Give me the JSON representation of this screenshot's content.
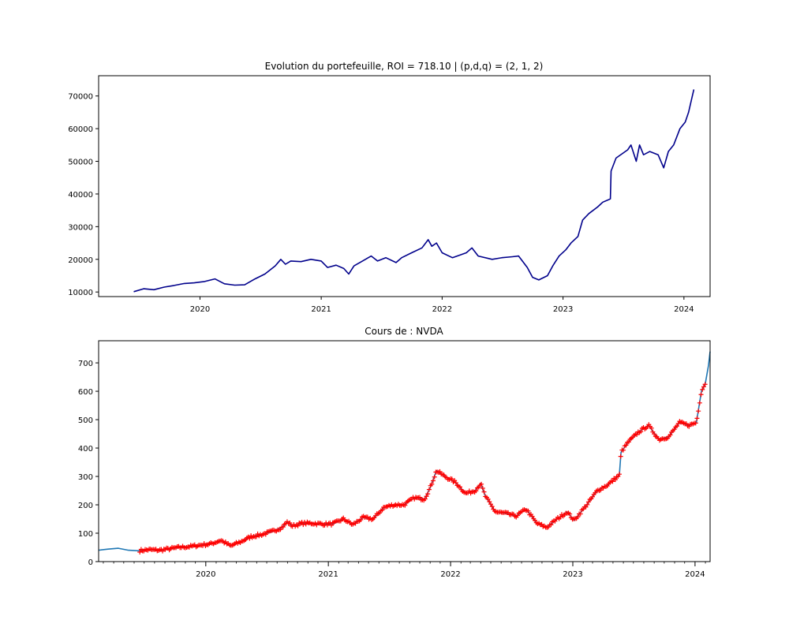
{
  "chart_data": [
    {
      "type": "line",
      "title": "Evolution du portefeuille, ROI = 718.10  |  (p,d,q) = (2, 1, 2)",
      "xlabel": "",
      "ylabel": "",
      "xlim": [
        "2019-03-01",
        "2024-03-20"
      ],
      "ylim": [
        8600,
        76200
      ],
      "x_ticks": [
        "2020",
        "2021",
        "2022",
        "2023",
        "2024"
      ],
      "y_ticks": [
        10000,
        20000,
        30000,
        40000,
        50000,
        60000,
        70000
      ],
      "grid": false,
      "series": [
        {
          "color": "#00008b",
          "points": [
            [
              "2019-06-15",
              10100
            ],
            [
              "2019-07-15",
              11000
            ],
            [
              "2019-08-15",
              10700
            ],
            [
              "2019-09-15",
              11500
            ],
            [
              "2019-10-15",
              12000
            ],
            [
              "2019-11-15",
              12600
            ],
            [
              "2019-12-15",
              12800
            ],
            [
              "2020-01-15",
              13200
            ],
            [
              "2020-02-15",
              14000
            ],
            [
              "2020-03-15",
              12500
            ],
            [
              "2020-04-15",
              12100
            ],
            [
              "2020-05-15",
              12200
            ],
            [
              "2020-06-15",
              14000
            ],
            [
              "2020-07-15",
              15500
            ],
            [
              "2020-08-15",
              18000
            ],
            [
              "2020-09-01",
              20000
            ],
            [
              "2020-09-15",
              18500
            ],
            [
              "2020-10-01",
              19500
            ],
            [
              "2020-11-01",
              19300
            ],
            [
              "2020-12-01",
              20000
            ],
            [
              "2021-01-01",
              19500
            ],
            [
              "2021-01-20",
              17500
            ],
            [
              "2021-02-15",
              18200
            ],
            [
              "2021-03-10",
              17200
            ],
            [
              "2021-03-25",
              15500
            ],
            [
              "2021-04-10",
              18000
            ],
            [
              "2021-05-01",
              19200
            ],
            [
              "2021-06-01",
              21000
            ],
            [
              "2021-06-20",
              19500
            ],
            [
              "2021-07-15",
              20500
            ],
            [
              "2021-08-15",
              19000
            ],
            [
              "2021-09-01",
              20500
            ],
            [
              "2021-10-01",
              22000
            ],
            [
              "2021-11-01",
              23500
            ],
            [
              "2021-11-20",
              26000
            ],
            [
              "2021-12-01",
              24000
            ],
            [
              "2021-12-15",
              25000
            ],
            [
              "2022-01-01",
              22000
            ],
            [
              "2022-02-01",
              20500
            ],
            [
              "2022-03-15",
              22000
            ],
            [
              "2022-04-01",
              23500
            ],
            [
              "2022-04-20",
              21000
            ],
            [
              "2022-06-01",
              20000
            ],
            [
              "2022-07-01",
              20500
            ],
            [
              "2022-08-01",
              20800
            ],
            [
              "2022-08-20",
              21000
            ],
            [
              "2022-09-15",
              17500
            ],
            [
              "2022-10-01",
              14500
            ],
            [
              "2022-10-20",
              13700
            ],
            [
              "2022-11-15",
              15000
            ],
            [
              "2022-12-01",
              18000
            ],
            [
              "2022-12-20",
              21000
            ],
            [
              "2023-01-10",
              23000
            ],
            [
              "2023-01-25",
              25000
            ],
            [
              "2023-02-15",
              27000
            ],
            [
              "2023-03-01",
              32000
            ],
            [
              "2023-03-20",
              34000
            ],
            [
              "2023-04-15",
              36000
            ],
            [
              "2023-05-01",
              37500
            ],
            [
              "2023-05-24",
              38500
            ],
            [
              "2023-05-26",
              47000
            ],
            [
              "2023-06-10",
              51000
            ],
            [
              "2023-07-15",
              53500
            ],
            [
              "2023-07-25",
              55000
            ],
            [
              "2023-08-10",
              50000
            ],
            [
              "2023-08-20",
              55000
            ],
            [
              "2023-09-01",
              52000
            ],
            [
              "2023-09-20",
              53000
            ],
            [
              "2023-10-15",
              52000
            ],
            [
              "2023-11-01",
              48000
            ],
            [
              "2023-11-15",
              53000
            ],
            [
              "2023-12-01",
              55000
            ],
            [
              "2023-12-20",
              60000
            ],
            [
              "2024-01-05",
              62000
            ],
            [
              "2024-01-15",
              65000
            ],
            [
              "2024-01-31",
              72000
            ]
          ]
        }
      ]
    },
    {
      "type": "line",
      "title": "Cours de : NVDA",
      "xlabel": "",
      "ylabel": "",
      "xlim": [
        "2019-02-15",
        "2024-02-15"
      ],
      "ylim": [
        0,
        778
      ],
      "x_ticks": [
        "2020",
        "2021",
        "2022",
        "2023",
        "2024"
      ],
      "y_ticks": [
        0,
        100,
        200,
        300,
        400,
        500,
        600,
        700
      ],
      "grid": false,
      "series": [
        {
          "color": "#1f77b4",
          "points": [
            [
              "2019-02-15",
              40
            ],
            [
              "2019-03-15",
              44
            ],
            [
              "2019-04-15",
              47
            ],
            [
              "2019-05-15",
              40
            ],
            [
              "2019-06-15",
              38
            ],
            [
              "2019-07-15",
              42
            ],
            [
              "2019-08-15",
              40
            ],
            [
              "2019-09-15",
              45
            ],
            [
              "2019-10-15",
              50
            ],
            [
              "2019-11-15",
              53
            ],
            [
              "2019-12-15",
              58
            ],
            [
              "2020-01-15",
              62
            ],
            [
              "2020-02-15",
              75
            ],
            [
              "2020-03-15",
              55
            ],
            [
              "2020-04-15",
              70
            ],
            [
              "2020-05-15",
              88
            ],
            [
              "2020-06-15",
              95
            ],
            [
              "2020-07-15",
              105
            ],
            [
              "2020-08-15",
              120
            ],
            [
              "2020-09-01",
              140
            ],
            [
              "2020-09-15",
              125
            ],
            [
              "2020-10-15",
              135
            ],
            [
              "2020-11-15",
              135
            ],
            [
              "2020-12-15",
              132
            ],
            [
              "2021-01-15",
              133
            ],
            [
              "2021-02-15",
              150
            ],
            [
              "2021-03-15",
              130
            ],
            [
              "2021-04-15",
              155
            ],
            [
              "2021-05-15",
              150
            ],
            [
              "2021-06-15",
              190
            ],
            [
              "2021-07-15",
              200
            ],
            [
              "2021-08-15",
              200
            ],
            [
              "2021-09-15",
              225
            ],
            [
              "2021-10-15",
              220
            ],
            [
              "2021-11-01",
              260
            ],
            [
              "2021-11-20",
              320
            ],
            [
              "2021-12-15",
              300
            ],
            [
              "2022-01-15",
              280
            ],
            [
              "2022-02-15",
              240
            ],
            [
              "2022-03-15",
              250
            ],
            [
              "2022-04-01",
              275
            ],
            [
              "2022-04-15",
              230
            ],
            [
              "2022-05-15",
              175
            ],
            [
              "2022-06-15",
              170
            ],
            [
              "2022-07-15",
              160
            ],
            [
              "2022-08-15",
              185
            ],
            [
              "2022-09-15",
              135
            ],
            [
              "2022-10-15",
              120
            ],
            [
              "2022-11-15",
              150
            ],
            [
              "2022-12-15",
              175
            ],
            [
              "2023-01-05",
              145
            ],
            [
              "2023-02-15",
              205
            ],
            [
              "2023-03-15",
              250
            ],
            [
              "2023-04-15",
              270
            ],
            [
              "2023-05-20",
              305
            ],
            [
              "2023-05-25",
              385
            ],
            [
              "2023-06-15",
              420
            ],
            [
              "2023-07-15",
              455
            ],
            [
              "2023-08-15",
              480
            ],
            [
              "2023-09-15",
              430
            ],
            [
              "2023-10-15",
              440
            ],
            [
              "2023-11-15",
              490
            ],
            [
              "2023-12-15",
              480
            ],
            [
              "2024-01-05",
              490
            ],
            [
              "2024-01-20",
              600
            ],
            [
              "2024-02-01",
              630
            ],
            [
              "2024-02-10",
              690
            ],
            [
              "2024-02-15",
              740
            ]
          ]
        }
      ],
      "markers": {
        "symbol": "+",
        "color": "#ff0000",
        "start": "2019-06-18",
        "end": "2024-01-31",
        "every_days": 4
      }
    }
  ]
}
